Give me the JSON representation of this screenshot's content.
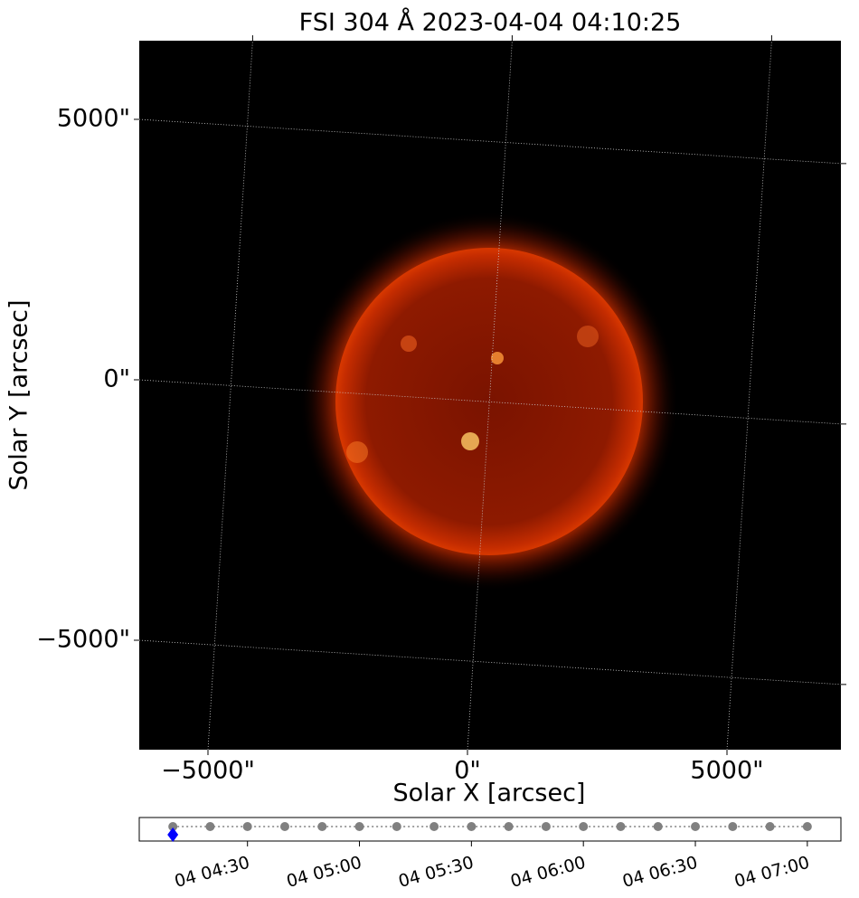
{
  "chart_data": [
    {
      "type": "image",
      "title": "FSI 304 Å 2023-04-04 04:10:25",
      "x_label": "Solar X [arcsec]",
      "y_label": "Solar Y [arcsec]",
      "xlim": [
        -6324,
        7195
      ],
      "ylim": [
        -7101,
        6510
      ],
      "xticks": [
        {
          "value": -5000,
          "label": "−5000\""
        },
        {
          "value": 0,
          "label": "0\""
        },
        {
          "value": 5000,
          "label": "5000\""
        }
      ],
      "yticks": [
        {
          "value": -5000,
          "label": "−5000\""
        },
        {
          "value": 0,
          "label": "0\""
        },
        {
          "value": 5000,
          "label": "5000\""
        }
      ],
      "grid": true
    },
    {
      "type": "timeline",
      "x": [
        "04 04:10",
        "04 04:20",
        "04 04:30",
        "04 04:40",
        "04 04:50",
        "04 05:00",
        "04 05:10",
        "04 05:20",
        "04 05:30",
        "04 05:40",
        "04 05:50",
        "04 06:00",
        "04 06:10",
        "04 06:20",
        "04 06:30",
        "04 06:40",
        "04 06:50",
        "04 07:00"
      ],
      "color": "#808080",
      "current": "04 04:10",
      "current_color": "#0000ff",
      "xlim": [
        "04 04:01",
        "04 07:09"
      ],
      "xticks": [
        "04 04:30",
        "04 05:00",
        "04 05:30",
        "04 06:00",
        "04 06:30",
        "04 07:00"
      ]
    }
  ]
}
